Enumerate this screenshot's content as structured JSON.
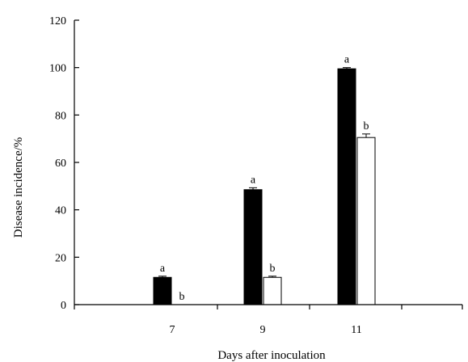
{
  "chart_data": {
    "type": "bar",
    "title": "",
    "xlabel": "Days after inoculation",
    "ylabel": "Disease incidence/%",
    "categories": [
      "7",
      "9",
      "11"
    ],
    "ylim": [
      0,
      120
    ],
    "yticks": [
      0,
      20,
      40,
      60,
      80,
      100,
      120
    ],
    "grid": false,
    "legend": "none",
    "series": [
      {
        "fill": "#000000",
        "values": [
          11.5,
          48.5,
          99.5
        ],
        "errors": [
          0.5,
          0.8,
          0.5
        ],
        "significance": [
          "a",
          "a",
          "a"
        ]
      },
      {
        "fill": "#ffffff",
        "values": [
          0,
          11.5,
          70.5
        ],
        "errors": [
          0,
          0.5,
          1.5
        ],
        "significance": [
          "b",
          "b",
          "b"
        ]
      }
    ]
  }
}
